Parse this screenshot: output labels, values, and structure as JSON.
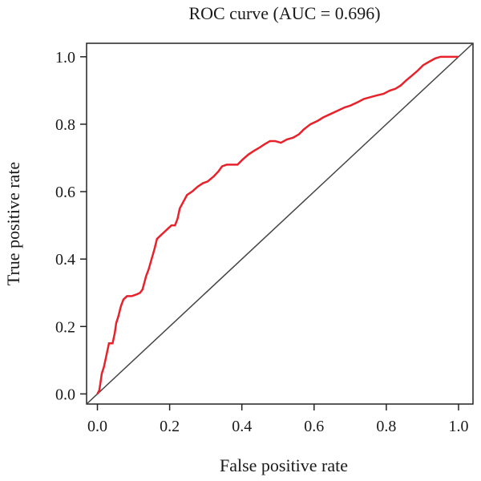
{
  "chart_data": {
    "type": "line",
    "title": "ROC curve (AUC = 0.696)",
    "xlabel": "False positive rate",
    "ylabel": "True positive rate",
    "xlim": [
      -0.03,
      1.04
    ],
    "ylim": [
      -0.03,
      1.04
    ],
    "x_ticks": [
      0.0,
      0.2,
      0.4,
      0.6,
      0.8,
      1.0
    ],
    "y_ticks": [
      0.0,
      0.2,
      0.4,
      0.6,
      0.8,
      1.0
    ],
    "x_tick_labels": [
      "0.0",
      "0.2",
      "0.4",
      "0.6",
      "0.8",
      "1.0"
    ],
    "y_tick_labels": [
      "0.0",
      "0.2",
      "0.4",
      "0.6",
      "0.8",
      "1.0"
    ],
    "grid": false,
    "colors": {
      "roc": "#e8212a",
      "diagonal": "#444444",
      "axes": "#222222"
    },
    "series": [
      {
        "points": [
          [
            0.0,
            0.0
          ],
          [
            0.005,
            0.01
          ],
          [
            0.008,
            0.03
          ],
          [
            0.012,
            0.06
          ],
          [
            0.018,
            0.08
          ],
          [
            0.022,
            0.1
          ],
          [
            0.028,
            0.13
          ],
          [
            0.032,
            0.15
          ],
          [
            0.042,
            0.15
          ],
          [
            0.048,
            0.18
          ],
          [
            0.052,
            0.21
          ],
          [
            0.058,
            0.23
          ],
          [
            0.065,
            0.26
          ],
          [
            0.072,
            0.28
          ],
          [
            0.082,
            0.29
          ],
          [
            0.095,
            0.29
          ],
          [
            0.108,
            0.295
          ],
          [
            0.118,
            0.3
          ],
          [
            0.125,
            0.31
          ],
          [
            0.13,
            0.33
          ],
          [
            0.135,
            0.35
          ],
          [
            0.142,
            0.37
          ],
          [
            0.15,
            0.4
          ],
          [
            0.158,
            0.43
          ],
          [
            0.165,
            0.46
          ],
          [
            0.175,
            0.47
          ],
          [
            0.185,
            0.48
          ],
          [
            0.195,
            0.49
          ],
          [
            0.205,
            0.5
          ],
          [
            0.215,
            0.5
          ],
          [
            0.222,
            0.52
          ],
          [
            0.228,
            0.55
          ],
          [
            0.238,
            0.57
          ],
          [
            0.248,
            0.59
          ],
          [
            0.262,
            0.6
          ],
          [
            0.278,
            0.615
          ],
          [
            0.292,
            0.625
          ],
          [
            0.305,
            0.63
          ],
          [
            0.322,
            0.645
          ],
          [
            0.335,
            0.66
          ],
          [
            0.345,
            0.675
          ],
          [
            0.358,
            0.68
          ],
          [
            0.372,
            0.68
          ],
          [
            0.388,
            0.68
          ],
          [
            0.402,
            0.695
          ],
          [
            0.418,
            0.71
          ],
          [
            0.432,
            0.72
          ],
          [
            0.448,
            0.73
          ],
          [
            0.462,
            0.74
          ],
          [
            0.478,
            0.75
          ],
          [
            0.492,
            0.75
          ],
          [
            0.508,
            0.745
          ],
          [
            0.525,
            0.755
          ],
          [
            0.542,
            0.76
          ],
          [
            0.558,
            0.77
          ],
          [
            0.572,
            0.785
          ],
          [
            0.59,
            0.8
          ],
          [
            0.61,
            0.81
          ],
          [
            0.625,
            0.82
          ],
          [
            0.645,
            0.83
          ],
          [
            0.665,
            0.84
          ],
          [
            0.685,
            0.85
          ],
          [
            0.7,
            0.855
          ],
          [
            0.72,
            0.865
          ],
          [
            0.738,
            0.875
          ],
          [
            0.755,
            0.88
          ],
          [
            0.772,
            0.885
          ],
          [
            0.792,
            0.89
          ],
          [
            0.81,
            0.9
          ],
          [
            0.825,
            0.905
          ],
          [
            0.84,
            0.915
          ],
          [
            0.855,
            0.93
          ],
          [
            0.872,
            0.945
          ],
          [
            0.888,
            0.96
          ],
          [
            0.902,
            0.975
          ],
          [
            0.918,
            0.985
          ],
          [
            0.935,
            0.995
          ],
          [
            0.95,
            1.0
          ],
          [
            0.97,
            1.0
          ],
          [
            0.985,
            1.0
          ],
          [
            1.0,
            1.0
          ]
        ]
      }
    ]
  }
}
